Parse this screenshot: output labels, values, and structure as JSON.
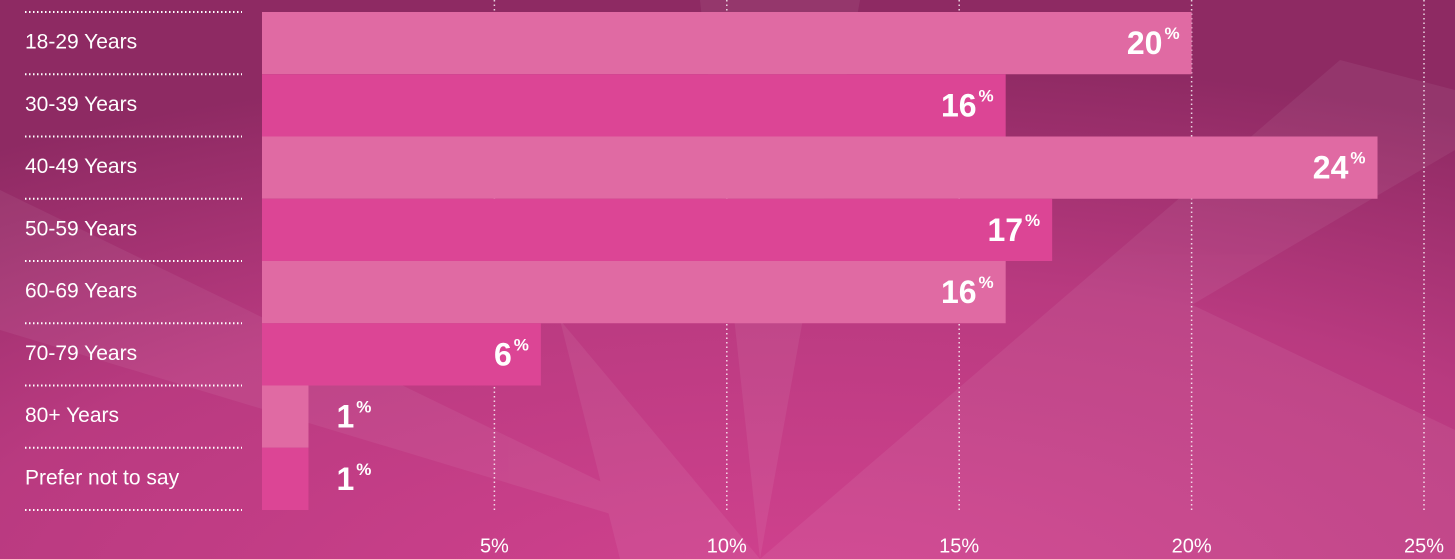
{
  "chart_data": {
    "type": "bar",
    "orientation": "horizontal",
    "categories": [
      "18-29 Years",
      "30-39 Years",
      "40-49 Years",
      "50-59 Years",
      "60-69 Years",
      "70-79 Years",
      "80+ Years",
      "Prefer not to say"
    ],
    "values": [
      20,
      16,
      24,
      17,
      16,
      6,
      1,
      1
    ],
    "value_labels": [
      "20%",
      "16%",
      "24%",
      "17%",
      "16%",
      "6%",
      "1%",
      "1%"
    ],
    "colors": [
      "#e06aa3",
      "#dc4595",
      "#e06aa3",
      "#dc4595",
      "#e06aa3",
      "#dc4595",
      "#e06aa3",
      "#dc4595"
    ],
    "xlim": [
      0,
      25
    ],
    "xticks": [
      {
        "value": 5,
        "label": "5%"
      },
      {
        "value": 10,
        "label": "10%"
      },
      {
        "value": 15,
        "label": "15%"
      },
      {
        "value": 20,
        "label": "20%"
      },
      {
        "value": 25,
        "label": "25%"
      }
    ],
    "grid": true
  }
}
